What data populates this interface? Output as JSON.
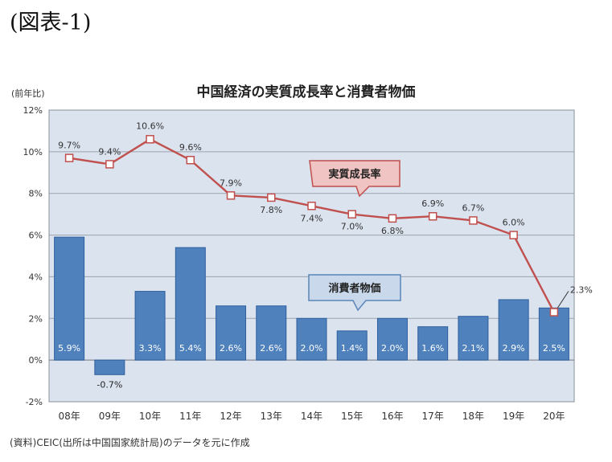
{
  "figure_label": "(図表-1)",
  "source_note": "(資料)CEIC(出所は中国国家統計局)のデータを元に作成",
  "chart_data": {
    "type": "bar",
    "title": "中国経済の実質成長率と消費者物価",
    "y_unit": "(前年比)",
    "categories": [
      "08年",
      "09年",
      "10年",
      "11年",
      "12年",
      "13年",
      "14年",
      "15年",
      "16年",
      "17年",
      "18年",
      "19年",
      "20年"
    ],
    "ylim": [
      -2,
      12
    ],
    "yticks": [
      "-2%",
      "0%",
      "2%",
      "4%",
      "6%",
      "8%",
      "10%",
      "12%"
    ],
    "ytick_values": [
      -2,
      0,
      2,
      4,
      6,
      8,
      10,
      12
    ],
    "grid": true,
    "series": [
      {
        "name": "消費者物価",
        "kind": "bar",
        "values": [
          5.9,
          -0.7,
          3.3,
          5.4,
          2.6,
          2.6,
          2.0,
          1.4,
          2.0,
          1.6,
          2.1,
          2.9,
          2.5
        ],
        "labels": [
          "5.9%",
          "-0.7%",
          "3.3%",
          "5.4%",
          "2.6%",
          "2.6%",
          "2.0%",
          "1.4%",
          "2.0%",
          "1.6%",
          "2.1%",
          "2.9%",
          "2.5%"
        ]
      },
      {
        "name": "実質成長率",
        "kind": "line",
        "values": [
          9.7,
          9.4,
          10.6,
          9.6,
          7.9,
          7.8,
          7.4,
          7.0,
          6.8,
          6.9,
          6.7,
          6.0,
          2.3
        ],
        "labels": [
          "9.7%",
          "9.4%",
          "10.6%",
          "9.6%",
          "7.9%",
          "7.8%",
          "7.4%",
          "7.0%",
          "6.8%",
          "6.9%",
          "6.7%",
          "6.0%",
          "2.3%"
        ]
      }
    ],
    "colors": {
      "plot_bg": "#dbe3ef",
      "bar_fill": "#4f81bd",
      "bar_stroke": "#2f5f9e",
      "line": "#c0504d",
      "grid": "#9aa3ad",
      "growth_callout_fill": "#efc4c2",
      "growth_callout_stroke": "#c0504d",
      "cpi_callout_fill": "#c9d8ea",
      "cpi_callout_stroke": "#5b86b8"
    }
  }
}
